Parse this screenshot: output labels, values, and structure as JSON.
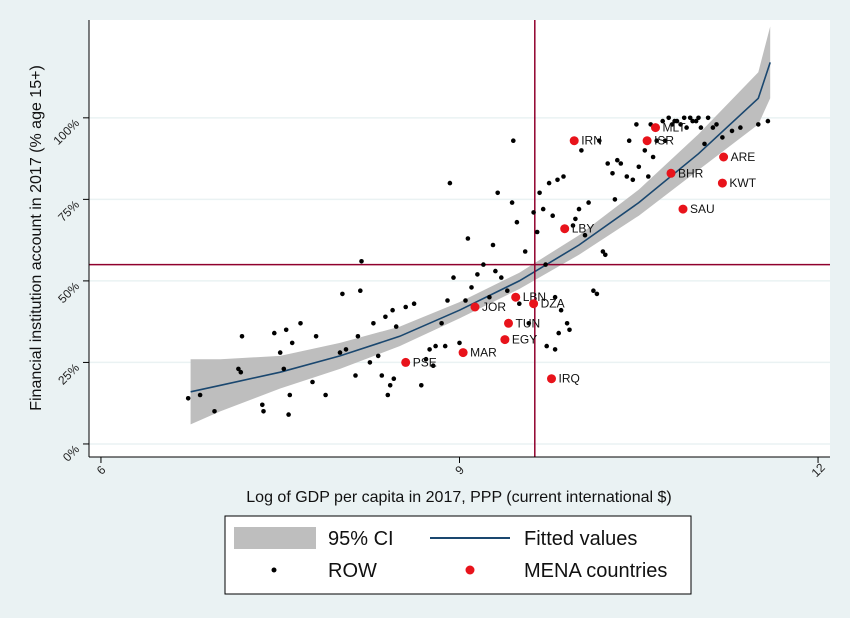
{
  "chart_data": {
    "type": "scatter",
    "title": "",
    "xlabel": "Log of GDP per capita in 2017, PPP (current international $)",
    "ylabel": "Financial institution account in 2017 (% age 15+)",
    "xlim": [
      5.9,
      12.1
    ],
    "ylim": [
      -0.04,
      1.3
    ],
    "x_ticks": [
      {
        "value": 6,
        "label": "6"
      },
      {
        "value": 9,
        "label": "9"
      },
      {
        "value": 12,
        "label": "12"
      }
    ],
    "y_ticks": [
      {
        "value": 0,
        "label": "0%"
      },
      {
        "value": 0.25,
        "label": "25%"
      },
      {
        "value": 0.5,
        "label": "50%"
      },
      {
        "value": 0.75,
        "label": "75%"
      },
      {
        "value": 1.0,
        "label": "100%"
      }
    ],
    "grid": true,
    "reference_lines": {
      "x": 9.63,
      "y": 0.55
    },
    "fit": {
      "x": [
        6.75,
        7.0,
        7.5,
        8.0,
        8.5,
        9.0,
        9.5,
        10.0,
        10.5,
        11.0,
        11.5,
        11.6
      ],
      "y": [
        0.16,
        0.18,
        0.22,
        0.27,
        0.33,
        0.41,
        0.5,
        0.61,
        0.74,
        0.89,
        1.06,
        1.17
      ],
      "ci_lower": [
        0.06,
        0.1,
        0.17,
        0.23,
        0.3,
        0.385,
        0.475,
        0.58,
        0.7,
        0.84,
        0.98,
        1.06
      ],
      "ci_upper": [
        0.26,
        0.26,
        0.27,
        0.31,
        0.36,
        0.435,
        0.525,
        0.64,
        0.78,
        0.95,
        1.14,
        1.28
      ]
    },
    "series": [
      {
        "name": "ROW",
        "points": [
          [
            6.73,
            0.14
          ],
          [
            6.83,
            0.15
          ],
          [
            6.95,
            0.1
          ],
          [
            7.15,
            0.23
          ],
          [
            7.17,
            0.22
          ],
          [
            7.18,
            0.33
          ],
          [
            7.35,
            0.12
          ],
          [
            7.36,
            0.1
          ],
          [
            7.45,
            0.34
          ],
          [
            7.5,
            0.28
          ],
          [
            7.53,
            0.23
          ],
          [
            7.55,
            0.35
          ],
          [
            7.57,
            0.09
          ],
          [
            7.58,
            0.15
          ],
          [
            7.6,
            0.31
          ],
          [
            7.67,
            0.37
          ],
          [
            7.77,
            0.19
          ],
          [
            7.8,
            0.33
          ],
          [
            7.88,
            0.15
          ],
          [
            8.0,
            0.28
          ],
          [
            8.02,
            0.46
          ],
          [
            8.05,
            0.29
          ],
          [
            8.13,
            0.21
          ],
          [
            8.15,
            0.33
          ],
          [
            8.17,
            0.47
          ],
          [
            8.18,
            0.56
          ],
          [
            8.25,
            0.25
          ],
          [
            8.28,
            0.37
          ],
          [
            8.32,
            0.27
          ],
          [
            8.35,
            0.21
          ],
          [
            8.38,
            0.39
          ],
          [
            8.4,
            0.15
          ],
          [
            8.42,
            0.18
          ],
          [
            8.44,
            0.41
          ],
          [
            8.45,
            0.2
          ],
          [
            8.47,
            0.36
          ],
          [
            8.55,
            0.42
          ],
          [
            8.62,
            0.43
          ],
          [
            8.68,
            0.18
          ],
          [
            8.72,
            0.26
          ],
          [
            8.75,
            0.29
          ],
          [
            8.78,
            0.24
          ],
          [
            8.8,
            0.3
          ],
          [
            8.85,
            0.37
          ],
          [
            8.88,
            0.3
          ],
          [
            8.9,
            0.44
          ],
          [
            8.92,
            0.8
          ],
          [
            8.95,
            0.51
          ],
          [
            9.0,
            0.31
          ],
          [
            9.05,
            0.44
          ],
          [
            9.07,
            0.63
          ],
          [
            9.1,
            0.48
          ],
          [
            9.15,
            0.52
          ],
          [
            9.2,
            0.55
          ],
          [
            9.25,
            0.45
          ],
          [
            9.28,
            0.61
          ],
          [
            9.3,
            0.53
          ],
          [
            9.32,
            0.77
          ],
          [
            9.35,
            0.51
          ],
          [
            9.4,
            0.47
          ],
          [
            9.44,
            0.74
          ],
          [
            9.45,
            0.93
          ],
          [
            9.48,
            0.68
          ],
          [
            9.5,
            0.43
          ],
          [
            9.55,
            0.59
          ],
          [
            9.58,
            0.37
          ],
          [
            9.62,
            0.71
          ],
          [
            9.65,
            0.65
          ],
          [
            9.67,
            0.77
          ],
          [
            9.7,
            0.72
          ],
          [
            9.72,
            0.55
          ],
          [
            9.73,
            0.3
          ],
          [
            9.75,
            0.8
          ],
          [
            9.78,
            0.7
          ],
          [
            9.8,
            0.45
          ],
          [
            9.8,
            0.29
          ],
          [
            9.82,
            0.81
          ],
          [
            9.83,
            0.34
          ],
          [
            9.85,
            0.41
          ],
          [
            9.87,
            0.82
          ],
          [
            9.9,
            0.37
          ],
          [
            9.92,
            0.35
          ],
          [
            9.95,
            0.67
          ],
          [
            9.97,
            0.69
          ],
          [
            10.0,
            0.72
          ],
          [
            10.02,
            0.9
          ],
          [
            10.05,
            0.64
          ],
          [
            10.08,
            0.74
          ],
          [
            10.12,
            0.47
          ],
          [
            10.15,
            0.46
          ],
          [
            10.17,
            0.93
          ],
          [
            10.2,
            0.59
          ],
          [
            10.22,
            0.58
          ],
          [
            10.24,
            0.86
          ],
          [
            10.28,
            0.83
          ],
          [
            10.3,
            0.75
          ],
          [
            10.32,
            0.87
          ],
          [
            10.35,
            0.86
          ],
          [
            10.4,
            0.82
          ],
          [
            10.42,
            0.93
          ],
          [
            10.45,
            0.81
          ],
          [
            10.48,
            0.98
          ],
          [
            10.5,
            0.85
          ],
          [
            10.55,
            0.9
          ],
          [
            10.58,
            0.82
          ],
          [
            10.6,
            0.98
          ],
          [
            10.62,
            0.88
          ],
          [
            10.65,
            0.93
          ],
          [
            10.7,
            0.99
          ],
          [
            10.72,
            0.93
          ],
          [
            10.75,
            1.0
          ],
          [
            10.78,
            0.98
          ],
          [
            10.8,
            0.99
          ],
          [
            10.82,
            0.99
          ],
          [
            10.85,
            0.98
          ],
          [
            10.88,
            1.0
          ],
          [
            10.9,
            0.97
          ],
          [
            10.93,
            1.0
          ],
          [
            10.95,
            0.99
          ],
          [
            10.98,
            0.99
          ],
          [
            11.0,
            1.0
          ],
          [
            11.02,
            0.97
          ],
          [
            11.05,
            0.92
          ],
          [
            11.08,
            1.0
          ],
          [
            11.12,
            0.97
          ],
          [
            11.15,
            0.98
          ],
          [
            11.2,
            0.94
          ],
          [
            11.28,
            0.96
          ],
          [
            11.35,
            0.97
          ],
          [
            11.5,
            0.98
          ],
          [
            11.58,
            0.99
          ]
        ]
      },
      {
        "name": "MENA countries",
        "points": [
          {
            "x": 8.55,
            "y": 0.25,
            "label": "PSE"
          },
          {
            "x": 9.03,
            "y": 0.28,
            "label": "MAR"
          },
          {
            "x": 9.13,
            "y": 0.42,
            "label": "JOR"
          },
          {
            "x": 9.38,
            "y": 0.32,
            "label": "EGY"
          },
          {
            "x": 9.41,
            "y": 0.37,
            "label": "TUN"
          },
          {
            "x": 9.47,
            "y": 0.45,
            "label": "LBN"
          },
          {
            "x": 9.62,
            "y": 0.43,
            "label": "DZA"
          },
          {
            "x": 9.77,
            "y": 0.2,
            "label": "IRQ"
          },
          {
            "x": 9.88,
            "y": 0.66,
            "label": "LBY"
          },
          {
            "x": 9.96,
            "y": 0.93,
            "label": "IRN"
          },
          {
            "x": 10.57,
            "y": 0.93,
            "label": "ISR"
          },
          {
            "x": 10.64,
            "y": 0.97,
            "label": "MLT"
          },
          {
            "x": 10.77,
            "y": 0.83,
            "label": "BHR"
          },
          {
            "x": 10.87,
            "y": 0.72,
            "label": "SAU"
          },
          {
            "x": 11.2,
            "y": 0.8,
            "label": "KWT"
          },
          {
            "x": 11.21,
            "y": 0.88,
            "label": "ARE"
          }
        ]
      }
    ],
    "legend": {
      "placement": "bottom",
      "entries": [
        {
          "key": "ci",
          "label": "95% CI"
        },
        {
          "key": "fit",
          "label": "Fitted values"
        },
        {
          "key": "row",
          "label": "ROW"
        },
        {
          "key": "mena",
          "label": "MENA countries"
        }
      ]
    },
    "colors": {
      "ci_band": "#bebebe",
      "fit_line": "#1a476f",
      "row_marker": "#000000",
      "mena_marker": "#e8131b",
      "reference_line": "#90002d",
      "grid": "#eaf2f3",
      "plot_bg": "#ffffff"
    }
  }
}
